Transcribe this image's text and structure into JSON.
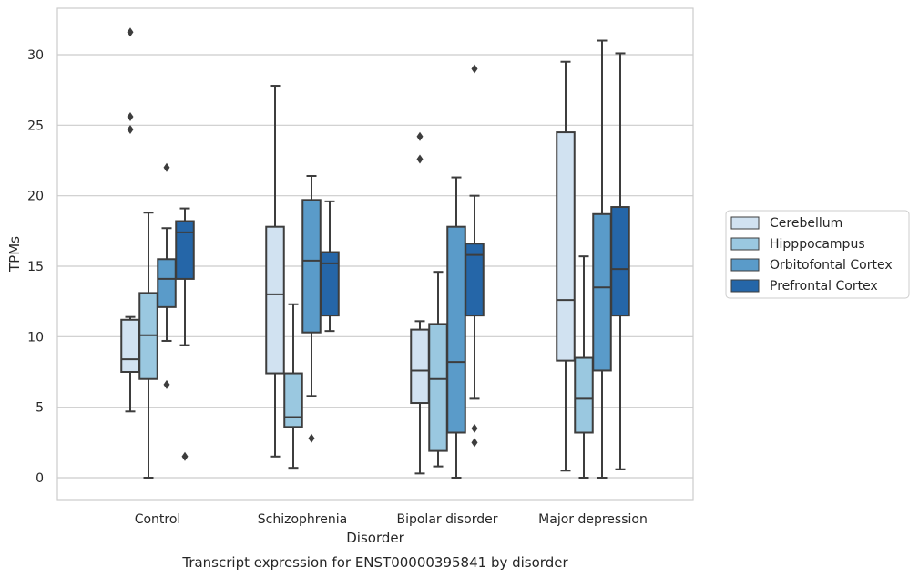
{
  "chart_data": {
    "type": "box",
    "xlabel": "Disorder",
    "ylabel": "TPMs",
    "caption": "Transcript expression for ENST00000395841 by disorder",
    "ylim": [
      -1.5,
      33
    ],
    "yticks": [
      0,
      5,
      10,
      15,
      20,
      25,
      30
    ],
    "grid": "horizontal",
    "legend_position": "right",
    "categories": [
      "Control",
      "Schizophrenia",
      "Bipolar disorder",
      "Major depression"
    ],
    "series": [
      {
        "name": "Cerebellum",
        "color": "#d1e2f1",
        "boxes": [
          {
            "whislo": 4.7,
            "q1": 7.5,
            "med": 8.4,
            "q3": 11.2,
            "whishi": 11.4,
            "fliers": [
              24.7,
              25.6,
              31.6
            ]
          },
          {
            "whislo": 1.5,
            "q1": 7.4,
            "med": 13.0,
            "q3": 17.8,
            "whishi": 27.8,
            "fliers": []
          },
          {
            "whislo": 0.3,
            "q1": 5.3,
            "med": 7.6,
            "q3": 10.5,
            "whishi": 11.1,
            "fliers": [
              22.6,
              24.2
            ]
          },
          {
            "whislo": 0.5,
            "q1": 8.3,
            "med": 12.6,
            "q3": 24.5,
            "whishi": 29.5,
            "fliers": []
          }
        ]
      },
      {
        "name": "Hipppocampus",
        "color": "#9ac8e0",
        "boxes": [
          {
            "whislo": 0.0,
            "q1": 7.0,
            "med": 10.1,
            "q3": 13.1,
            "whishi": 18.8,
            "fliers": []
          },
          {
            "whislo": 0.7,
            "q1": 3.6,
            "med": 4.3,
            "q3": 7.4,
            "whishi": 12.3,
            "fliers": []
          },
          {
            "whislo": 0.8,
            "q1": 1.9,
            "med": 7.0,
            "q3": 10.9,
            "whishi": 14.6,
            "fliers": []
          },
          {
            "whislo": 0.0,
            "q1": 3.2,
            "med": 5.6,
            "q3": 8.5,
            "whishi": 15.7,
            "fliers": []
          }
        ]
      },
      {
        "name": "Orbitofontal Cortex",
        "color": "#5a9bc9",
        "boxes": [
          {
            "whislo": 9.7,
            "q1": 12.1,
            "med": 14.1,
            "q3": 15.5,
            "whishi": 17.7,
            "fliers": [
              6.6,
              22.0
            ]
          },
          {
            "whislo": 5.8,
            "q1": 10.3,
            "med": 15.4,
            "q3": 19.7,
            "whishi": 21.4,
            "fliers": [
              2.8
            ]
          },
          {
            "whislo": 0.0,
            "q1": 3.2,
            "med": 8.2,
            "q3": 17.8,
            "whishi": 21.3,
            "fliers": []
          },
          {
            "whislo": 0.0,
            "q1": 7.6,
            "med": 13.5,
            "q3": 18.7,
            "whishi": 31.0,
            "fliers": []
          }
        ]
      },
      {
        "name": "Prefrontal Cortex",
        "color": "#2566a8",
        "boxes": [
          {
            "whislo": 9.4,
            "q1": 14.1,
            "med": 17.4,
            "q3": 18.2,
            "whishi": 19.1,
            "fliers": [
              1.5
            ]
          },
          {
            "whislo": 10.4,
            "q1": 11.5,
            "med": 15.2,
            "q3": 16.0,
            "whishi": 19.6,
            "fliers": []
          },
          {
            "whislo": 5.6,
            "q1": 11.5,
            "med": 15.8,
            "q3": 16.6,
            "whishi": 20.0,
            "fliers": [
              2.5,
              3.5,
              29.0
            ]
          },
          {
            "whislo": 0.6,
            "q1": 11.5,
            "med": 14.8,
            "q3": 19.2,
            "whishi": 30.1,
            "fliers": []
          }
        ]
      }
    ]
  }
}
